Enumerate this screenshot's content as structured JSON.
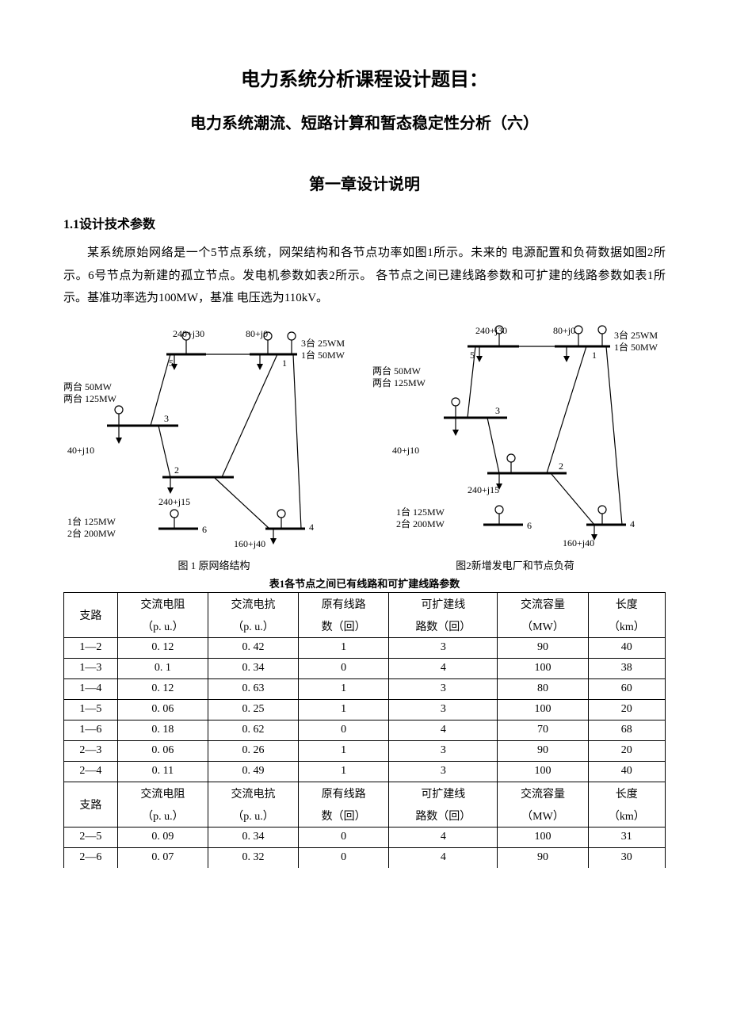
{
  "titles": {
    "main": "电力系统分析课程设计题目：",
    "sub": "电力系统潮流、短路计算和暂态稳定性分析（六）",
    "chapter": "第一章设计说明",
    "section": "1.1设计技术参数"
  },
  "paragraph": "某系统原始网络是一个5节点系统，网架结构和各节点功率如图1所示。未来的 电源配置和负荷数据如图2所示。6号节点为新建的孤立节点。发电机参数如表2所示。 各节点之间已建线路参数和可扩建的线路参数如表1所示。基准功率选为100MW，基准 电压选为110kV。",
  "figures": {
    "fig1_caption": "图 1  原网络结构",
    "fig2_caption": "图2新增发电厂和节点负荷",
    "table_caption": "表1各节点之间已有线路和可扩建线路参数",
    "fig1": {
      "nodes": {
        "n1": {
          "label": "1",
          "load": "80+j0",
          "gen": "3台 25WM"
        },
        "n1b": {
          "gen2": "1台 50MW"
        },
        "n5": {
          "label": "5",
          "load": "240+j30"
        },
        "n3": {
          "label": "3",
          "gen": "两台 50MW",
          "gen2": "两台 125MW",
          "load": "40+j10"
        },
        "n2": {
          "label": "2",
          "load": "240+j15"
        },
        "n4": {
          "label": "4",
          "load": "160+j40"
        },
        "n6": {
          "label": "6",
          "gen": "1台 125MW",
          "gen2": "2台 200MW"
        }
      }
    },
    "fig2": {
      "nodes": {
        "n1": {
          "label": "1",
          "load": "80+j0",
          "gen": "3台 25WM",
          "gen2": "1台 50MW"
        },
        "n5": {
          "label": "5",
          "load": "240+j30"
        },
        "n3": {
          "label": "3",
          "gen": "两台  50MW",
          "gen2": "两台 125MW",
          "load": "40+j10"
        },
        "n2": {
          "label": "2",
          "load": "240+j15"
        },
        "n4": {
          "label": "4",
          "load": "160+j40"
        },
        "n6": {
          "label": "6",
          "gen": "1台 125MW",
          "gen2": "2台 200MW"
        }
      }
    }
  },
  "table": {
    "columns": [
      "支路",
      "交流电阻",
      "交流电抗",
      "原有线路",
      "可扩建线",
      "交流容量",
      "长度"
    ],
    "column_subs": [
      "",
      "（p. u.）",
      "（p. u.）",
      "数（回）",
      "路数（回）",
      "（MW）",
      "（km）"
    ],
    "rows1": [
      [
        "1—2",
        "0. 12",
        "0. 42",
        "1",
        "3",
        "90",
        "40"
      ],
      [
        "1—3",
        "0. 1",
        "0. 34",
        "0",
        "4",
        "100",
        "38"
      ],
      [
        "1—4",
        "0. 12",
        "0. 63",
        "1",
        "3",
        "80",
        "60"
      ],
      [
        "1—5",
        "0. 06",
        "0. 25",
        "1",
        "3",
        "100",
        "20"
      ],
      [
        "1—6",
        "0. 18",
        "0. 62",
        "0",
        "4",
        "70",
        "68"
      ],
      [
        "2—3",
        "0. 06",
        "0. 26",
        "1",
        "3",
        "90",
        "20"
      ],
      [
        "2—4",
        "0. 11",
        "0. 49",
        "1",
        "3",
        "100",
        "40"
      ]
    ],
    "rows2": [
      [
        "2—5",
        "0. 09",
        "0. 34",
        "0",
        "4",
        "100",
        "31"
      ],
      [
        "2—6",
        "0. 07",
        "0. 32",
        "0",
        "4",
        "90",
        "30"
      ]
    ]
  },
  "colors": {
    "text": "#000000",
    "bg": "#ffffff",
    "border": "#000000"
  }
}
